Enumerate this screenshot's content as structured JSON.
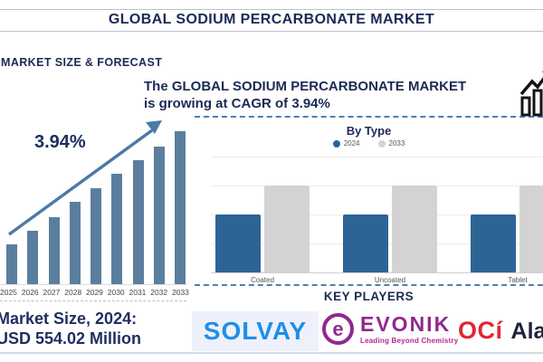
{
  "header": {
    "title": "GLOBAL SODIUM PERCARBONATE MARKET"
  },
  "left": {
    "heading": "MARKET SIZE & FORECAST",
    "cagr": "3.94%",
    "market_size_line1": "Market Size, 2024:",
    "market_size_line2": "USD 554.02 Million"
  },
  "headline": {
    "line1": "The GLOBAL SODIUM PERCARBONATE MARKET",
    "line2": "is growing at CAGR of 3.94%"
  },
  "by_type": {
    "title": "By Type"
  },
  "key_players": {
    "heading": "KEY PLAYERS",
    "solvay": "SOLVAY",
    "evonik": "EVONIK",
    "evonik_emblem": "e",
    "evonik_tagline": "Leading Beyond Chemistry",
    "oci": "OCí",
    "oci_partner": "Alab"
  },
  "colors": {
    "navy_text": "#1b2a56",
    "forecast_bar": "#5b7e9e",
    "trend_arrow": "#4b79a8",
    "dashed_line": "#4d80b4",
    "bar_2024": "#2d6496",
    "bar_2033": "#d3d3d3",
    "solvay_blue": "#1f8fe8",
    "evonik_purple": "#91288f",
    "evonik_magenta": "#bc2590",
    "oci_red": "#e32531"
  },
  "chart_data": [
    {
      "type": "bar",
      "name": "market-size-forecast",
      "title": "MARKET SIZE & FORECAST",
      "categories": [
        "2025",
        "2026",
        "2027",
        "2028",
        "2029",
        "2030",
        "2031",
        "2032",
        "2033"
      ],
      "values": [
        26,
        35,
        44,
        54,
        63,
        72,
        81,
        90,
        100
      ],
      "value_unit": "percent of tallest bar (illustrative ascending bars)",
      "annotation": "3.94%",
      "trend_arrow": true,
      "bar_color": "#5b7e9e",
      "xlabel": "",
      "ylabel": ""
    },
    {
      "type": "bar",
      "name": "by-type",
      "title": "By Type",
      "categories": [
        "Coated",
        "Uncoated",
        "Tablet"
      ],
      "series": [
        {
          "name": "2024",
          "color": "#2d6496",
          "values": [
            2,
            2,
            2
          ]
        },
        {
          "name": "2033",
          "color": "#d3d3d3",
          "values": [
            3,
            3,
            3
          ]
        }
      ],
      "ylim": [
        0,
        4
      ],
      "grid": true,
      "legend_position": "top",
      "note": "relative heights read from gridlines; 2033 bars reach gridline 3, 2024 bars gridline 2"
    }
  ]
}
